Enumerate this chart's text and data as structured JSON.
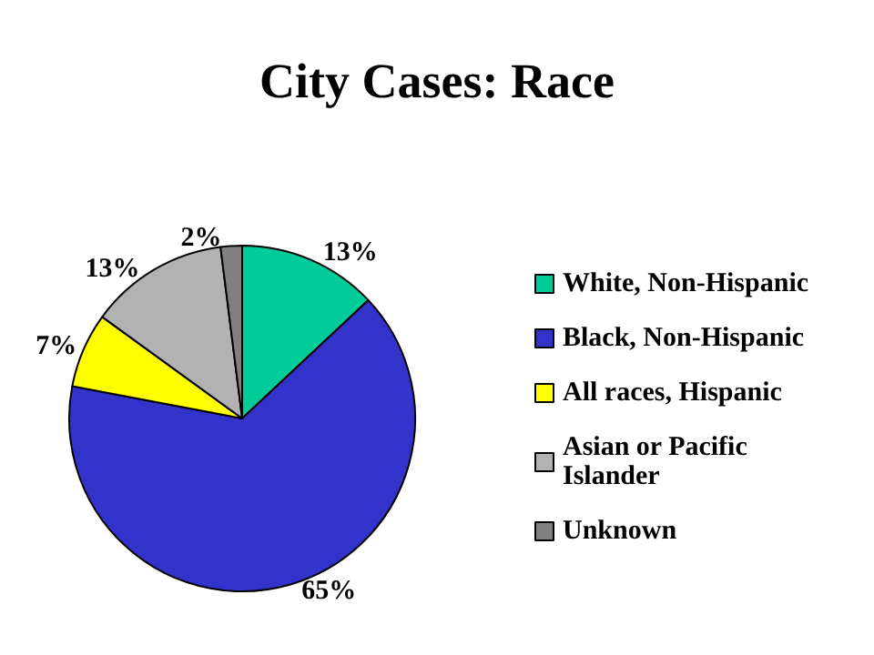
{
  "chart_data": {
    "type": "pie",
    "title": "City Cases: Race",
    "categories": [
      "White, Non-Hispanic",
      "Black, Non-Hispanic",
      "All races, Hispanic",
      "Asian or Pacific Islander",
      "Unknown"
    ],
    "values": [
      13,
      65,
      7,
      13,
      2
    ],
    "value_labels": [
      "13%",
      "65%",
      "7%",
      "13%",
      "2%"
    ],
    "colors": [
      "#00cc99",
      "#3333cc",
      "#ffff00",
      "#b2b2b2",
      "#808080"
    ],
    "legend": "right"
  }
}
